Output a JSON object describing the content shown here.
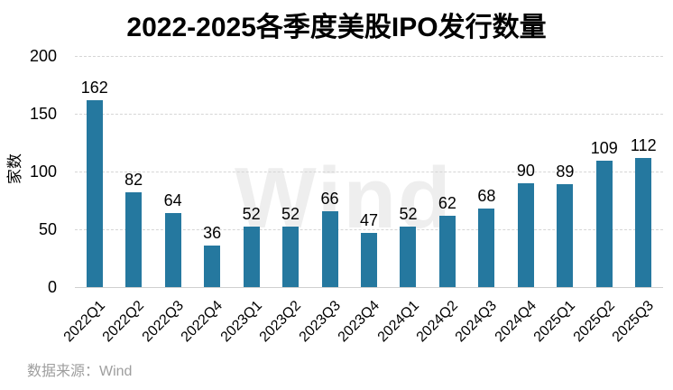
{
  "title": "2022-2025各季度美股IPO发行数量",
  "watermark": "Wind",
  "source": "数据来源：Wind",
  "colors": {
    "bar": "#25789f",
    "grid": "#d6d6d6",
    "axis": "#cfcfcf",
    "text": "#000000",
    "source_text": "#9e9e9e",
    "watermark": "#eeeeee"
  },
  "chart_data": {
    "type": "bar",
    "title": "2022-2025各季度美股IPO发行数量",
    "xlabel": "",
    "ylabel": "家数",
    "categories": [
      "2022Q1",
      "2022Q2",
      "2022Q3",
      "2022Q4",
      "2023Q1",
      "2023Q2",
      "2023Q3",
      "2023Q4",
      "2024Q1",
      "2024Q2",
      "2024Q3",
      "2024Q4",
      "2025Q1",
      "2025Q2",
      "2025Q3"
    ],
    "values": [
      162,
      82,
      64,
      36,
      52,
      52,
      66,
      47,
      52,
      62,
      68,
      90,
      89,
      109,
      112
    ],
    "ylim": [
      0,
      200
    ],
    "yticks": [
      0,
      50,
      100,
      150,
      200
    ],
    "grid": "horizontal-dashed",
    "legend_position": "none",
    "data_labels": true
  }
}
